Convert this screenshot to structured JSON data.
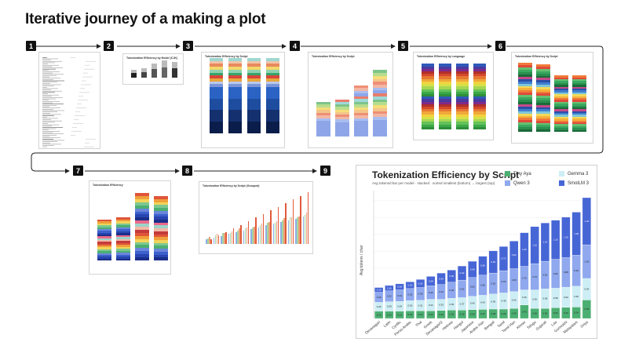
{
  "page": {
    "title": "Iterative journey of a making a plot"
  },
  "steps": [
    {
      "number": "1"
    },
    {
      "number": "2",
      "panel_title": "Tokenization Efficiency by Model (CJK)"
    },
    {
      "number": "3",
      "panel_title": "Tokenization Efficiency by Script"
    },
    {
      "number": "4",
      "panel_title": "Tokenization Efficiency by Script"
    },
    {
      "number": "5",
      "panel_title": "Tokenization Efficiency by Language"
    },
    {
      "number": "6",
      "panel_title": "Tokenization Efficiency by Script"
    },
    {
      "number": "7",
      "panel_title": "Tokenization Efficiency"
    },
    {
      "number": "8",
      "panel_title": "Tokenization Efficiency by Script (Grouped)"
    },
    {
      "number": "9"
    }
  ],
  "final_chart": {
    "title": "Tokenization Efficiency by Script",
    "subtitle": "Avg tokens/char per model · stacked · sorted smallest (bottom) → largest (top)",
    "ylabel": "Avg tokens / char",
    "legend": [
      {
        "name": "Tiny Aya",
        "color": "#4caf72"
      },
      {
        "name": "Gemma 3",
        "color": "#cdeef4"
      },
      {
        "name": "Qwen 3",
        "color": "#8fa8ee"
      },
      {
        "name": "SmolLM 3",
        "color": "#4766d6"
      }
    ]
  },
  "chart_data": {
    "type": "bar",
    "stacked": true,
    "title": "Tokenization Efficiency by Script",
    "ylabel": "Avg tokens / char",
    "categories": [
      "Devanagari",
      "Latin",
      "Cyrillic",
      "Perso-Arabic",
      "Thai",
      "Greek",
      "Devanagari2",
      "Hebrew",
      "Hangul",
      "Japanese",
      "Arabic Han",
      "Bengali",
      "Tamil",
      "Tamil Han",
      "Khmer",
      "Telugu",
      "Gujarati",
      "Lao",
      "Gurmukhi",
      "Malayalam",
      "Oriya"
    ],
    "series": [
      {
        "name": "Tiny Aya",
        "values": [
          0.22,
          0.22,
          0.22,
          0.23,
          0.23,
          0.23,
          0.24,
          0.25,
          0.25,
          0.26,
          0.27,
          0.28,
          0.28,
          0.3,
          0.4,
          0.3,
          0.3,
          0.32,
          0.33,
          0.34,
          0.55
        ]
      },
      {
        "name": "Gemma 3",
        "values": [
          0.26,
          0.28,
          0.29,
          0.3,
          0.31,
          0.34,
          0.33,
          0.35,
          0.37,
          0.4,
          0.42,
          0.45,
          0.48,
          0.5,
          0.45,
          0.55,
          0.58,
          0.58,
          0.6,
          0.62,
          0.64
        ]
      },
      {
        "name": "Qwen 3",
        "values": [
          0.3,
          0.32,
          0.34,
          0.36,
          0.38,
          0.4,
          0.44,
          0.48,
          0.52,
          0.56,
          0.6,
          0.62,
          0.66,
          0.68,
          0.7,
          0.78,
          0.82,
          0.86,
          0.88,
          0.92,
          1.0
        ]
      },
      {
        "name": "SmolLM 3",
        "values": [
          0.14,
          0.16,
          0.18,
          0.2,
          0.24,
          0.28,
          0.34,
          0.36,
          0.42,
          0.48,
          0.56,
          0.66,
          0.72,
          0.82,
          1.0,
          1.1,
          1.14,
          1.16,
          1.2,
          1.28,
          1.4
        ]
      }
    ],
    "legend": "top-right",
    "grid": true
  },
  "colors": {
    "accent": "#111111",
    "arrow": "#222222"
  }
}
